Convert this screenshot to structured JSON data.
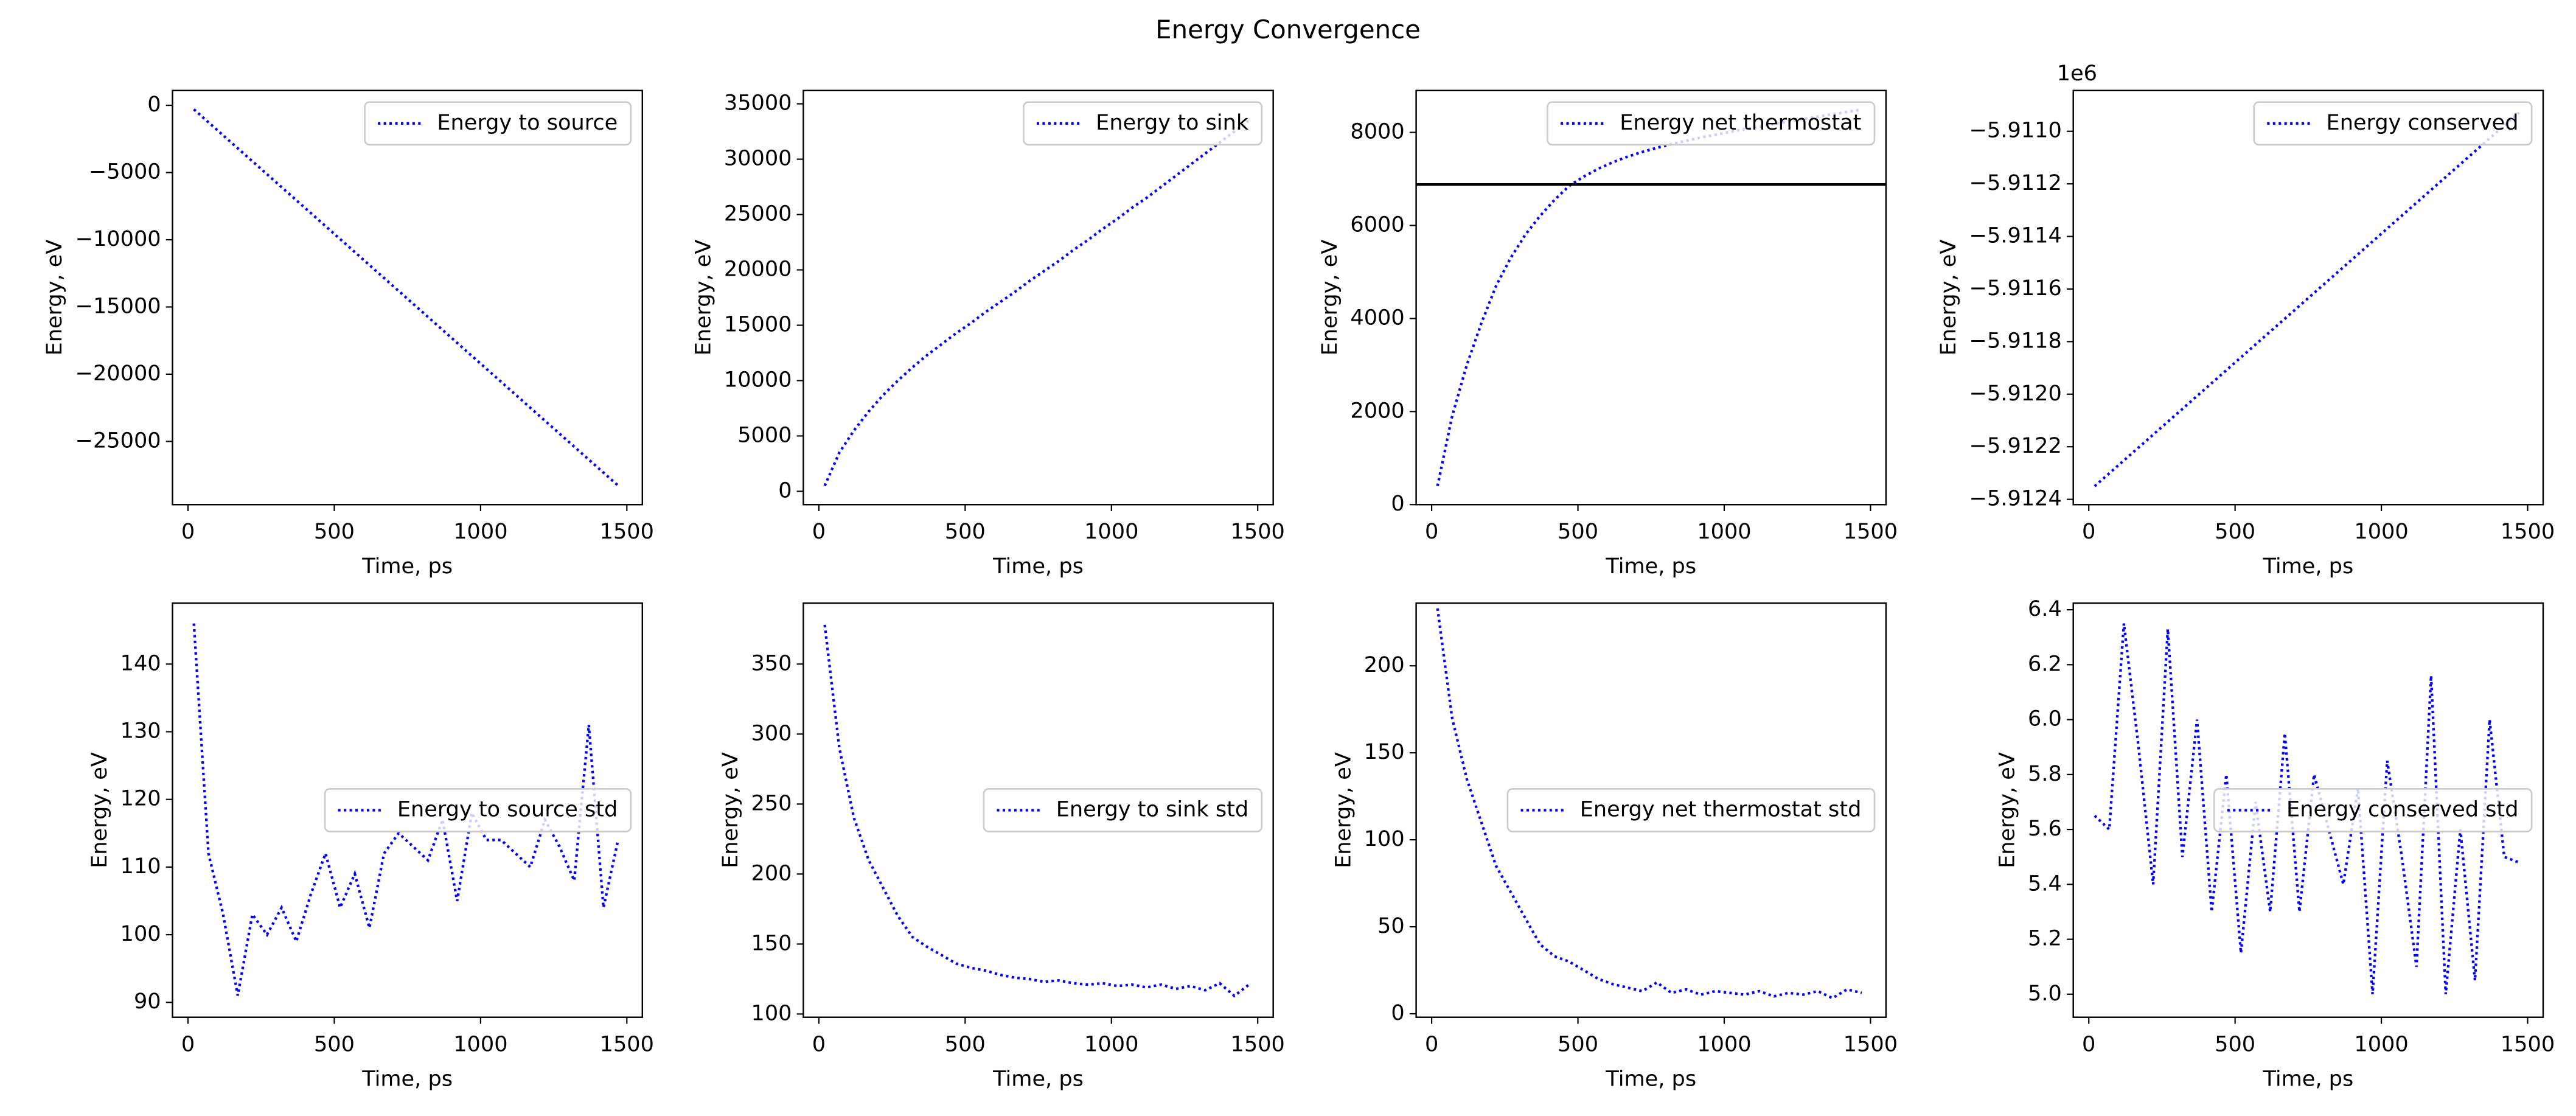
{
  "title": "Energy Convergence",
  "chart_data": [
    {
      "type": "line",
      "xlabel": "Time, ps",
      "ylabel": "Energy, eV",
      "legend": "upper right",
      "linestyle": "dotted",
      "x": [
        20,
        70,
        120,
        170,
        220,
        270,
        320,
        370,
        420,
        470,
        520,
        570,
        620,
        670,
        720,
        770,
        820,
        870,
        920,
        970,
        1020,
        1070,
        1120,
        1170,
        1220,
        1270,
        1320,
        1370,
        1420,
        1470
      ],
      "series": [
        {
          "name": "Energy to source",
          "color": "#0000ff",
          "values": [
            -300,
            -1265,
            -2230,
            -3195,
            -4160,
            -5125,
            -6090,
            -7055,
            -8020,
            -8985,
            -9950,
            -10915,
            -11880,
            -12845,
            -13810,
            -14775,
            -15740,
            -16705,
            -17670,
            -18635,
            -19600,
            -20565,
            -21530,
            -22495,
            -23460,
            -24425,
            -25390,
            -26355,
            -27320,
            -28285
          ]
        }
      ],
      "xlim": [
        -53,
        1553
      ],
      "xticks": [
        0,
        500,
        1000,
        1500
      ],
      "ylim": [
        -29700,
        1100
      ],
      "yticks": [
        0,
        {
          "value": -5000,
          "label": "−5000"
        },
        {
          "value": -10000,
          "label": "−10000"
        },
        {
          "value": -15000,
          "label": "−15000"
        },
        {
          "value": -20000,
          "label": "−20000"
        },
        {
          "value": -25000,
          "label": "−25000"
        }
      ]
    },
    {
      "type": "line",
      "xlabel": "Time, ps",
      "ylabel": "Energy, eV",
      "legend": "upper right",
      "linestyle": "dotted",
      "x": [
        20,
        70,
        120,
        170,
        220,
        270,
        320,
        370,
        420,
        470,
        520,
        570,
        620,
        670,
        720,
        770,
        820,
        870,
        920,
        970,
        1020,
        1070,
        1120,
        1170,
        1220,
        1270,
        1320,
        1370,
        1420,
        1470
      ],
      "series": [
        {
          "name": "Energy to sink",
          "color": "#0000ff",
          "values": [
            500,
            3500,
            5500,
            7200,
            8700,
            10000,
            11200,
            12300,
            13300,
            14300,
            15200,
            16200,
            17100,
            18000,
            19000,
            19900,
            20800,
            21800,
            22700,
            23700,
            24600,
            25600,
            26500,
            27500,
            28500,
            29500,
            30500,
            31500,
            32500,
            33500
          ]
        }
      ],
      "xlim": [
        -53,
        1553
      ],
      "xticks": [
        0,
        500,
        1000,
        1500
      ],
      "ylim": [
        -1200,
        36200
      ],
      "yticks": [
        0,
        5000,
        10000,
        15000,
        20000,
        25000,
        30000,
        35000
      ]
    },
    {
      "type": "line",
      "xlabel": "Time, ps",
      "ylabel": "Energy, eV",
      "legend": "upper right",
      "linestyle": "dotted",
      "x": [
        20,
        70,
        120,
        170,
        220,
        270,
        320,
        370,
        420,
        470,
        520,
        570,
        620,
        670,
        720,
        770,
        820,
        870,
        920,
        970,
        1020,
        1070,
        1120,
        1170,
        1220,
        1270,
        1320,
        1370,
        1420,
        1470
      ],
      "series": [
        {
          "name": "Energy net thermostat",
          "color": "#0000ff",
          "values": [
            400,
            1900,
            3000,
            3900,
            4700,
            5300,
            5800,
            6200,
            6550,
            6850,
            7050,
            7220,
            7360,
            7480,
            7580,
            7670,
            7750,
            7820,
            7890,
            7950,
            8010,
            8070,
            8120,
            8180,
            8230,
            8290,
            8340,
            8390,
            8440,
            8490
          ]
        }
      ],
      "hline": {
        "value": 6880,
        "color": "#000000"
      },
      "xlim": [
        -53,
        1553
      ],
      "xticks": [
        0,
        500,
        1000,
        1500
      ],
      "ylim": [
        0,
        8900
      ],
      "yticks": [
        0,
        2000,
        4000,
        6000,
        8000
      ]
    },
    {
      "type": "line",
      "xlabel": "Time, ps",
      "ylabel": "Energy, eV",
      "legend": "upper right",
      "linestyle": "dotted",
      "offset_label": "1e6",
      "x": [
        20,
        70,
        120,
        170,
        220,
        270,
        320,
        370,
        420,
        470,
        520,
        570,
        620,
        670,
        720,
        770,
        820,
        870,
        920,
        970,
        1020,
        1070,
        1120,
        1170,
        1220,
        1270,
        1320,
        1370,
        1420,
        1470
      ],
      "series": [
        {
          "name": "Energy conserved",
          "color": "#0000ff",
          "values": [
            -5912350,
            -5912301,
            -5912252,
            -5912203,
            -5912154,
            -5912105,
            -5912056,
            -5912007,
            -5911958,
            -5911909,
            -5911860,
            -5911811,
            -5911762,
            -5911713,
            -5911664,
            -5911615,
            -5911566,
            -5911517,
            -5911468,
            -5911419,
            -5911370,
            -5911321,
            -5911272,
            -5911223,
            -5911174,
            -5911125,
            -5911076,
            -5911027,
            -5910978,
            -5910929
          ]
        }
      ],
      "xlim": [
        -53,
        1553
      ],
      "xticks": [
        0,
        500,
        1000,
        1500
      ],
      "ylim": [
        -5912420,
        -5910845
      ],
      "yticks": [
        {
          "value": -5912400,
          "label": "−5.9124"
        },
        {
          "value": -5912200,
          "label": "−5.9122"
        },
        {
          "value": -5912000,
          "label": "−5.9120"
        },
        {
          "value": -5911800,
          "label": "−5.9118"
        },
        {
          "value": -5911600,
          "label": "−5.9116"
        },
        {
          "value": -5911400,
          "label": "−5.9114"
        },
        {
          "value": -5911200,
          "label": "−5.9112"
        },
        {
          "value": -5911000,
          "label": "−5.9110"
        }
      ]
    },
    {
      "type": "line",
      "xlabel": "Time, ps",
      "ylabel": "Energy, eV",
      "legend": "center right",
      "linestyle": "dotted",
      "x": [
        20,
        70,
        120,
        170,
        220,
        270,
        320,
        370,
        420,
        470,
        520,
        570,
        620,
        670,
        720,
        770,
        820,
        870,
        920,
        970,
        1020,
        1070,
        1120,
        1170,
        1220,
        1270,
        1320,
        1370,
        1420,
        1470
      ],
      "series": [
        {
          "name": "Energy to source std",
          "color": "#0000ff",
          "values": [
            146,
            112,
            103,
            91,
            103,
            100,
            104,
            99,
            106,
            112,
            104,
            109,
            101,
            112,
            115,
            113,
            111,
            117,
            105,
            118,
            114,
            114,
            112,
            110,
            117,
            113,
            108,
            131,
            104,
            114
          ]
        }
      ],
      "xlim": [
        -53,
        1553
      ],
      "xticks": [
        0,
        500,
        1000,
        1500
      ],
      "ylim": [
        87.8,
        149
      ],
      "yticks": [
        90,
        100,
        110,
        120,
        130,
        140
      ]
    },
    {
      "type": "line",
      "xlabel": "Time, ps",
      "ylabel": "Energy, eV",
      "legend": "center right",
      "linestyle": "dotted",
      "x": [
        20,
        70,
        120,
        170,
        220,
        270,
        320,
        370,
        420,
        470,
        520,
        570,
        620,
        670,
        720,
        770,
        820,
        870,
        920,
        970,
        1020,
        1070,
        1120,
        1170,
        1220,
        1270,
        1320,
        1370,
        1420,
        1470
      ],
      "series": [
        {
          "name": "Energy to sink std",
          "color": "#0000ff",
          "values": [
            378,
            290,
            240,
            210,
            190,
            170,
            155,
            148,
            142,
            136,
            133,
            131,
            128,
            126,
            125,
            123,
            124,
            122,
            121,
            122,
            120,
            121,
            119,
            121,
            118,
            120,
            117,
            122,
            113,
            121
          ]
        }
      ],
      "xlim": [
        -53,
        1553
      ],
      "xticks": [
        0,
        500,
        1000,
        1500
      ],
      "ylim": [
        97.7,
        393.5
      ],
      "yticks": [
        100,
        150,
        200,
        250,
        300,
        350
      ]
    },
    {
      "type": "line",
      "xlabel": "Time, ps",
      "ylabel": "Energy, eV",
      "legend": "center right",
      "linestyle": "dotted",
      "x": [
        20,
        70,
        120,
        170,
        220,
        270,
        320,
        370,
        420,
        470,
        520,
        570,
        620,
        670,
        720,
        770,
        820,
        870,
        920,
        970,
        1020,
        1070,
        1120,
        1170,
        1220,
        1270,
        1320,
        1370,
        1420,
        1470
      ],
      "series": [
        {
          "name": "Energy net thermostat std",
          "color": "#0000ff",
          "values": [
            233,
            170,
            135,
            110,
            85,
            70,
            55,
            40,
            33,
            30,
            25,
            20,
            17,
            15,
            13,
            18,
            12,
            14,
            11,
            13,
            12,
            11,
            13,
            10,
            12,
            11,
            13,
            9,
            14,
            12
          ]
        }
      ],
      "xlim": [
        -53,
        1553
      ],
      "xticks": [
        0,
        500,
        1000,
        1500
      ],
      "ylim": [
        -2,
        236
      ],
      "yticks": [
        0,
        50,
        100,
        150,
        200
      ]
    },
    {
      "type": "line",
      "xlabel": "Time, ps",
      "ylabel": "Energy, eV",
      "legend": "center right",
      "linestyle": "dotted",
      "x": [
        20,
        70,
        120,
        170,
        220,
        270,
        320,
        370,
        420,
        470,
        520,
        570,
        620,
        670,
        720,
        770,
        820,
        870,
        920,
        970,
        1020,
        1070,
        1120,
        1170,
        1220,
        1270,
        1320,
        1370,
        1420,
        1470
      ],
      "series": [
        {
          "name": "Energy conserved std",
          "color": "#0000ff",
          "values": [
            5.65,
            5.6,
            6.35,
            5.9,
            5.4,
            6.33,
            5.5,
            6.0,
            5.3,
            5.8,
            5.15,
            5.7,
            5.3,
            5.95,
            5.3,
            5.8,
            5.6,
            5.4,
            5.75,
            5.0,
            5.85,
            5.5,
            5.1,
            6.16,
            5.0,
            5.6,
            5.05,
            6.0,
            5.5,
            5.48
          ]
        }
      ],
      "xlim": [
        -53,
        1553
      ],
      "xticks": [
        0,
        500,
        1000,
        1500
      ],
      "ylim": [
        4.916,
        6.424
      ],
      "yticks": [
        {
          "value": 5,
          "label": "5.0"
        },
        5.2,
        5.4,
        5.6,
        5.8,
        {
          "value": 6,
          "label": "6.0"
        },
        6.2,
        6.4
      ]
    }
  ]
}
